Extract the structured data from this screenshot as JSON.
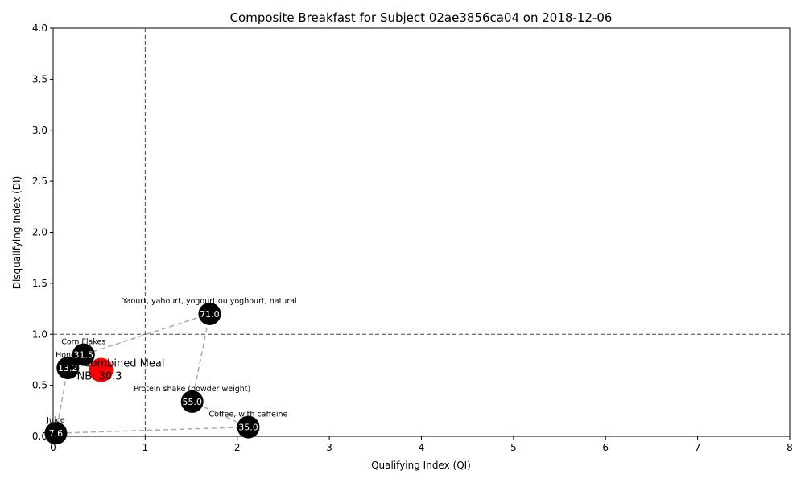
{
  "chart_data": {
    "type": "scatter",
    "title": "Composite Breakfast for Subject 02ae3856ca04 on 2018-12-06",
    "xlabel": "Qualifying Index (QI)",
    "ylabel": "Disqualifying Index (DI)",
    "xlim": [
      0,
      8
    ],
    "ylim": [
      0,
      4
    ],
    "xticks": [
      0,
      1,
      2,
      3,
      4,
      5,
      6,
      7,
      8
    ],
    "yticks": [
      0.0,
      0.5,
      1.0,
      1.5,
      2.0,
      2.5,
      3.0,
      3.5,
      4.0
    ],
    "grid": false,
    "reference_lines": {
      "x": 1,
      "y": 1,
      "style": "dashed",
      "color": "#444444"
    },
    "connector": {
      "style": "dashed",
      "color": "#aaaaaa"
    },
    "points": [
      {
        "name": "Juice",
        "qi": 0.03,
        "di": 0.03,
        "value_label": "7.6"
      },
      {
        "name": "Honey",
        "qi": 0.16,
        "di": 0.67,
        "value_label": "13.2"
      },
      {
        "name": "Corn Flakes",
        "qi": 0.33,
        "di": 0.8,
        "value_label": "31.5"
      },
      {
        "name": "Yaourt, yahourt, yogourt ou yoghourt, natural",
        "qi": 1.7,
        "di": 1.2,
        "value_label": "71.0"
      },
      {
        "name": "Protein shake (powder weight)",
        "qi": 1.51,
        "di": 0.34,
        "value_label": "55.0"
      },
      {
        "name": "Coffee, with caffeine",
        "qi": 2.12,
        "di": 0.09,
        "value_label": "35.0"
      }
    ],
    "path_order": [
      "Juice",
      "Honey",
      "Corn Flakes",
      "Yaourt, yahourt, yogourt ou yoghourt, natural",
      "Protein shake (powder weight)",
      "Coffee, with caffeine",
      "Juice"
    ],
    "combined": {
      "label": "Combined Meal",
      "nb_text": "NB: 30.3",
      "qi": 0.52,
      "di": 0.65,
      "color": "#ff0000"
    },
    "point_color": "#000000"
  }
}
